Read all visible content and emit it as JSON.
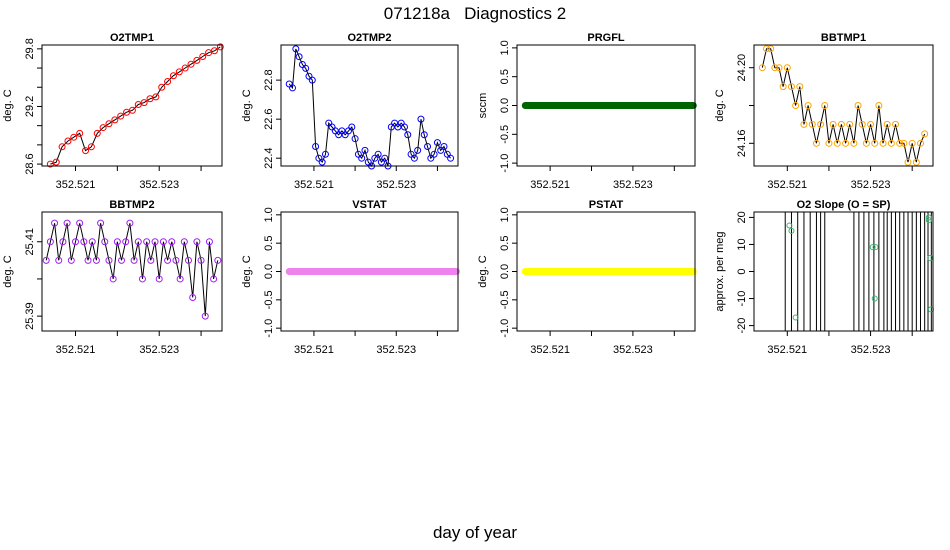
{
  "page_title": "071218a   Diagnostics 2",
  "x_axis_label": "day of year",
  "chart_data": [
    {
      "type": "line",
      "title": "O2TMP1",
      "ylabel": "deg. C",
      "xlim": [
        352.5202,
        352.5245
      ],
      "ylim": [
        28.58,
        29.84
      ],
      "xticks": [
        "352.521",
        "352.522",
        "352.523",
        "352.524"
      ],
      "xtick_values": [
        352.521,
        352.522,
        352.523,
        352.524
      ],
      "xtick_labeled": [
        true,
        false,
        true,
        false
      ],
      "yticks": [
        "28.6",
        "28.8",
        "29.0",
        "29.2",
        "29.4",
        "29.6",
        "29.8"
      ],
      "ytick_values": [
        28.6,
        28.8,
        29.0,
        29.2,
        29.4,
        29.6,
        29.8
      ],
      "ytick_labeled": [
        true,
        false,
        false,
        true,
        false,
        false,
        true
      ],
      "color": "#ff0000",
      "markers": true,
      "thick": false,
      "x": [
        352.5204,
        352.52054,
        352.52068,
        352.52082,
        352.52096,
        352.5211,
        352.52124,
        352.52138,
        352.52152,
        352.52166,
        352.5218,
        352.52194,
        352.52208,
        352.52222,
        352.52236,
        352.5225,
        352.52264,
        352.52278,
        352.52292,
        352.52306,
        352.5232,
        352.52334,
        352.52348,
        352.52362,
        352.52376,
        352.5239,
        352.52404,
        352.52418,
        352.52432,
        352.52446
      ],
      "y": [
        28.6,
        28.62,
        28.78,
        28.84,
        28.88,
        28.92,
        28.74,
        28.78,
        28.92,
        28.98,
        29.02,
        29.06,
        29.1,
        29.14,
        29.16,
        29.22,
        29.24,
        29.28,
        29.3,
        29.4,
        29.46,
        29.52,
        29.56,
        29.6,
        29.64,
        29.68,
        29.72,
        29.76,
        29.78,
        29.82
      ]
    },
    {
      "type": "line",
      "title": "O2TMP2",
      "ylabel": "deg. C",
      "xlim": [
        352.5202,
        352.5245
      ],
      "ylim": [
        22.36,
        22.98
      ],
      "xticks": [
        "352.521",
        "352.522",
        "352.523",
        "352.524"
      ],
      "xtick_values": [
        352.521,
        352.522,
        352.523,
        352.524
      ],
      "xtick_labeled": [
        true,
        false,
        true,
        false
      ],
      "yticks": [
        "22.4",
        "22.6",
        "22.8"
      ],
      "ytick_values": [
        22.4,
        22.6,
        22.8
      ],
      "ytick_labeled": [
        true,
        true,
        true
      ],
      "color": "#0000ff",
      "markers": true,
      "thick": false,
      "x": [
        352.5204,
        352.52048,
        352.52056,
        352.52064,
        352.52072,
        352.5208,
        352.52088,
        352.52096,
        352.52104,
        352.52112,
        352.5212,
        352.52128,
        352.52136,
        352.52144,
        352.52152,
        352.5216,
        352.52168,
        352.52176,
        352.52184,
        352.52192,
        352.522,
        352.52208,
        352.52216,
        352.52224,
        352.52232,
        352.5224,
        352.52248,
        352.52256,
        352.52264,
        352.52272,
        352.5228,
        352.52288,
        352.52296,
        352.52304,
        352.52312,
        352.5232,
        352.52328,
        352.52336,
        352.52344,
        352.52352,
        352.5236,
        352.52368,
        352.52376,
        352.52384,
        352.52392,
        352.524,
        352.52408,
        352.52416,
        352.52424,
        352.52432
      ],
      "y": [
        22.78,
        22.76,
        22.96,
        22.92,
        22.88,
        22.86,
        22.82,
        22.8,
        22.46,
        22.4,
        22.38,
        22.42,
        22.58,
        22.56,
        22.54,
        22.52,
        22.54,
        22.52,
        22.54,
        22.56,
        22.5,
        22.42,
        22.4,
        22.44,
        22.38,
        22.36,
        22.4,
        22.42,
        22.38,
        22.4,
        22.36,
        22.56,
        22.58,
        22.56,
        22.58,
        22.56,
        22.52,
        22.42,
        22.4,
        22.44,
        22.6,
        22.52,
        22.46,
        22.4,
        22.42,
        22.48,
        22.44,
        22.46,
        22.42,
        22.4
      ]
    },
    {
      "type": "line",
      "title": "PRGFL",
      "ylabel": "sccm",
      "xlim": [
        352.5202,
        352.5245
      ],
      "ylim": [
        -1.05,
        1.05
      ],
      "xticks": [
        "352.521",
        "352.522",
        "352.523",
        "352.524"
      ],
      "xtick_values": [
        352.521,
        352.522,
        352.523,
        352.524
      ],
      "xtick_labeled": [
        true,
        false,
        true,
        false
      ],
      "yticks": [
        "-1.0",
        "-0.5",
        "0.0",
        "0.5",
        "1.0"
      ],
      "ytick_values": [
        -1.0,
        -0.5,
        0.0,
        0.5,
        1.0
      ],
      "ytick_labeled": [
        true,
        true,
        true,
        true,
        true
      ],
      "color": "#006400",
      "markers": false,
      "thick": true,
      "x": [
        352.5204,
        352.52446
      ],
      "y": [
        0,
        0
      ]
    },
    {
      "type": "line",
      "title": "BBTMP1",
      "ylabel": "deg. C",
      "xlim": [
        352.5202,
        352.5245
      ],
      "ylim": [
        24.148,
        24.212
      ],
      "xticks": [
        "352.521",
        "352.522",
        "352.523",
        "352.524"
      ],
      "xtick_values": [
        352.521,
        352.522,
        352.523,
        352.524
      ],
      "xtick_labeled": [
        true,
        false,
        true,
        false
      ],
      "yticks": [
        "24.16",
        "24.18",
        "24.20"
      ],
      "ytick_values": [
        24.16,
        24.18,
        24.2
      ],
      "ytick_labeled": [
        true,
        false,
        true
      ],
      "color": "#ffa500",
      "markers": true,
      "thick": false,
      "x": [
        352.5204,
        352.5205,
        352.5206,
        352.5207,
        352.5208,
        352.5209,
        352.521,
        352.5211,
        352.5212,
        352.5213,
        352.5214,
        352.5215,
        352.5216,
        352.5217,
        352.5218,
        352.5219,
        352.522,
        352.5221,
        352.5222,
        352.5223,
        352.5224,
        352.5225,
        352.5226,
        352.5227,
        352.5228,
        352.5229,
        352.523,
        352.5231,
        352.5232,
        352.5233,
        352.5234,
        352.5235,
        352.5236,
        352.5237,
        352.5238,
        352.5239,
        352.524,
        352.5241,
        352.5242,
        352.5243
      ],
      "y": [
        24.2,
        24.21,
        24.21,
        24.2,
        24.2,
        24.19,
        24.2,
        24.19,
        24.18,
        24.19,
        24.17,
        24.18,
        24.17,
        24.16,
        24.17,
        24.18,
        24.16,
        24.17,
        24.16,
        24.17,
        24.16,
        24.17,
        24.16,
        24.18,
        24.17,
        24.16,
        24.17,
        24.16,
        24.18,
        24.16,
        24.17,
        24.16,
        24.17,
        24.16,
        24.16,
        24.15,
        24.16,
        24.15,
        24.16,
        24.165
      ]
    },
    {
      "type": "line",
      "title": "BBTMP2",
      "ylabel": "deg. C",
      "xlim": [
        352.5202,
        352.5245
      ],
      "ylim": [
        25.386,
        25.418
      ],
      "xticks": [
        "352.521",
        "352.522",
        "352.523",
        "352.524"
      ],
      "xtick_values": [
        352.521,
        352.522,
        352.523,
        352.524
      ],
      "xtick_labeled": [
        true,
        false,
        true,
        false
      ],
      "yticks": [
        "25.39",
        "25.40",
        "25.41"
      ],
      "ytick_values": [
        25.39,
        25.4,
        25.41
      ],
      "ytick_labeled": [
        true,
        false,
        true
      ],
      "color": "#a020f0",
      "markers": true,
      "thick": false,
      "x": [
        352.5203,
        352.5204,
        352.5205,
        352.5206,
        352.5207,
        352.5208,
        352.5209,
        352.521,
        352.5211,
        352.5212,
        352.5213,
        352.5214,
        352.5215,
        352.5216,
        352.5217,
        352.5218,
        352.5219,
        352.522,
        352.5221,
        352.5222,
        352.5223,
        352.5224,
        352.5225,
        352.5226,
        352.5227,
        352.5228,
        352.5229,
        352.523,
        352.5231,
        352.5232,
        352.5233,
        352.5234,
        352.5235,
        352.5236,
        352.5237,
        352.5238,
        352.5239,
        352.524,
        352.5241,
        352.5242,
        352.5243,
        352.5244
      ],
      "y": [
        25.405,
        25.41,
        25.415,
        25.405,
        25.41,
        25.415,
        25.405,
        25.41,
        25.415,
        25.41,
        25.405,
        25.41,
        25.405,
        25.415,
        25.41,
        25.405,
        25.4,
        25.41,
        25.405,
        25.41,
        25.415,
        25.405,
        25.41,
        25.4,
        25.41,
        25.405,
        25.41,
        25.4,
        25.41,
        25.405,
        25.41,
        25.405,
        25.4,
        25.41,
        25.405,
        25.395,
        25.41,
        25.405,
        25.39,
        25.41,
        25.4,
        25.405
      ]
    },
    {
      "type": "line",
      "title": "VSTAT",
      "ylabel": "deg. C",
      "xlim": [
        352.5202,
        352.5245
      ],
      "ylim": [
        -1.05,
        1.05
      ],
      "xticks": [
        "352.521",
        "352.522",
        "352.523",
        "352.524"
      ],
      "xtick_values": [
        352.521,
        352.522,
        352.523,
        352.524
      ],
      "xtick_labeled": [
        true,
        false,
        true,
        false
      ],
      "yticks": [
        "-1.0",
        "-0.5",
        "0.0",
        "0.5",
        "1.0"
      ],
      "ytick_values": [
        -1.0,
        -0.5,
        0.0,
        0.5,
        1.0
      ],
      "ytick_labeled": [
        true,
        true,
        true,
        true,
        true
      ],
      "color": "#ee82ee",
      "markers": false,
      "thick": true,
      "x": [
        352.5204,
        352.52446
      ],
      "y": [
        0,
        0
      ]
    },
    {
      "type": "line",
      "title": "PSTAT",
      "ylabel": "deg. C",
      "xlim": [
        352.5202,
        352.5245
      ],
      "ylim": [
        -1.05,
        1.05
      ],
      "xticks": [
        "352.521",
        "352.522",
        "352.523",
        "352.524"
      ],
      "xtick_values": [
        352.521,
        352.522,
        352.523,
        352.524
      ],
      "xtick_labeled": [
        true,
        false,
        true,
        false
      ],
      "yticks": [
        "-1.0",
        "-0.5",
        "0.0",
        "0.5",
        "1.0"
      ],
      "ytick_values": [
        -1.0,
        -0.5,
        0.0,
        0.5,
        1.0
      ],
      "ytick_labeled": [
        true,
        true,
        true,
        true,
        true
      ],
      "color": "#ffff00",
      "markers": false,
      "thick": true,
      "x": [
        352.5204,
        352.52446
      ],
      "y": [
        0,
        0
      ]
    },
    {
      "type": "line",
      "title": "O2 Slope (O = SP)",
      "ylabel": "approx. per meg",
      "xlim": [
        352.5202,
        352.5245
      ],
      "ylim": [
        -22,
        22
      ],
      "xticks": [
        "352.521",
        "352.522",
        "352.523",
        "352.524"
      ],
      "xtick_values": [
        352.521,
        352.522,
        352.523,
        352.524
      ],
      "xtick_labeled": [
        true,
        false,
        true,
        false
      ],
      "yticks": [
        "-20",
        "-10",
        "0",
        "10",
        "20"
      ],
      "ytick_values": [
        -20,
        -10,
        0,
        10,
        20
      ],
      "ytick_labeled": [
        true,
        true,
        true,
        true,
        true
      ],
      "color": "#000000",
      "markers": false,
      "thick": false,
      "vlines": [
        352.52095,
        352.5211,
        352.52125,
        352.5214,
        352.52155,
        352.5217,
        352.5218,
        352.5219,
        352.5226,
        352.52272,
        352.52284,
        352.52296,
        352.52308,
        352.5232,
        352.52332,
        352.5234,
        352.5235,
        352.5236,
        352.5237,
        352.5238,
        352.5239,
        352.524,
        352.5241,
        352.5242,
        352.5243,
        352.52438,
        352.52446
      ],
      "points": {
        "color": "#3cb371",
        "x": [
          352.52105,
          352.5211,
          352.5212,
          352.52305,
          352.5231,
          352.52312,
          352.5244,
          352.52443,
          352.52445,
          352.5244
        ],
        "y": [
          17,
          15,
          -17,
          9,
          -10,
          9,
          20,
          5,
          -14,
          19
        ]
      }
    }
  ]
}
